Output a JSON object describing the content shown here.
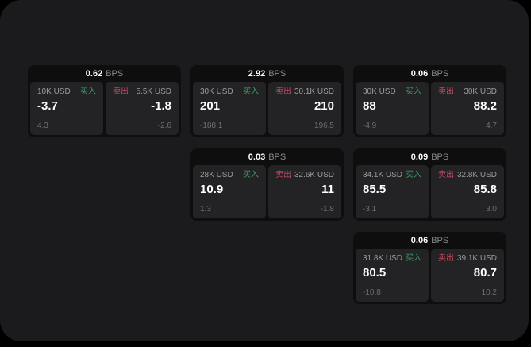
{
  "labels": {
    "bps_unit": "BPS",
    "buy": "买入",
    "sell": "卖出"
  },
  "colors": {
    "page_bg": "#1b1b1d",
    "card_bg": "#0e0e0f",
    "panel_bg": "#232325",
    "buy_green": "#3f9e62",
    "sell_red": "#c84a5f",
    "primary_text": "#ffffff",
    "muted_text": "#9c9ca0",
    "sub_text": "#6e6e72"
  },
  "cards": [
    {
      "bps": "0.62",
      "buy": {
        "amount": "10K USD",
        "price": "-3.7",
        "sub": "4.3"
      },
      "sell": {
        "amount": "5.5K USD",
        "price": "-1.8",
        "sub": "-2.6"
      }
    },
    {
      "bps": "2.92",
      "buy": {
        "amount": "30K USD",
        "price": "201",
        "sub": "-188.1"
      },
      "sell": {
        "amount": "30.1K USD",
        "price": "210",
        "sub": "196.5"
      }
    },
    {
      "bps": "0.06",
      "buy": {
        "amount": "30K USD",
        "price": "88",
        "sub": "-4.9"
      },
      "sell": {
        "amount": "30K USD",
        "price": "88.2",
        "sub": "4.7"
      }
    },
    {
      "bps": "0.03",
      "buy": {
        "amount": "28K USD",
        "price": "10.9",
        "sub": "1.3"
      },
      "sell": {
        "amount": "32.6K USD",
        "price": "11",
        "sub": "-1.8"
      }
    },
    {
      "bps": "0.09",
      "buy": {
        "amount": "34.1K USD",
        "price": "85.5",
        "sub": "-3.1"
      },
      "sell": {
        "amount": "32.8K USD",
        "price": "85.8",
        "sub": "3.0"
      }
    },
    {
      "bps": "0.06",
      "buy": {
        "amount": "31.8K USD",
        "price": "80.5",
        "sub": "-10.8"
      },
      "sell": {
        "amount": "39.1K USD",
        "price": "80.7",
        "sub": "10.2"
      }
    }
  ]
}
